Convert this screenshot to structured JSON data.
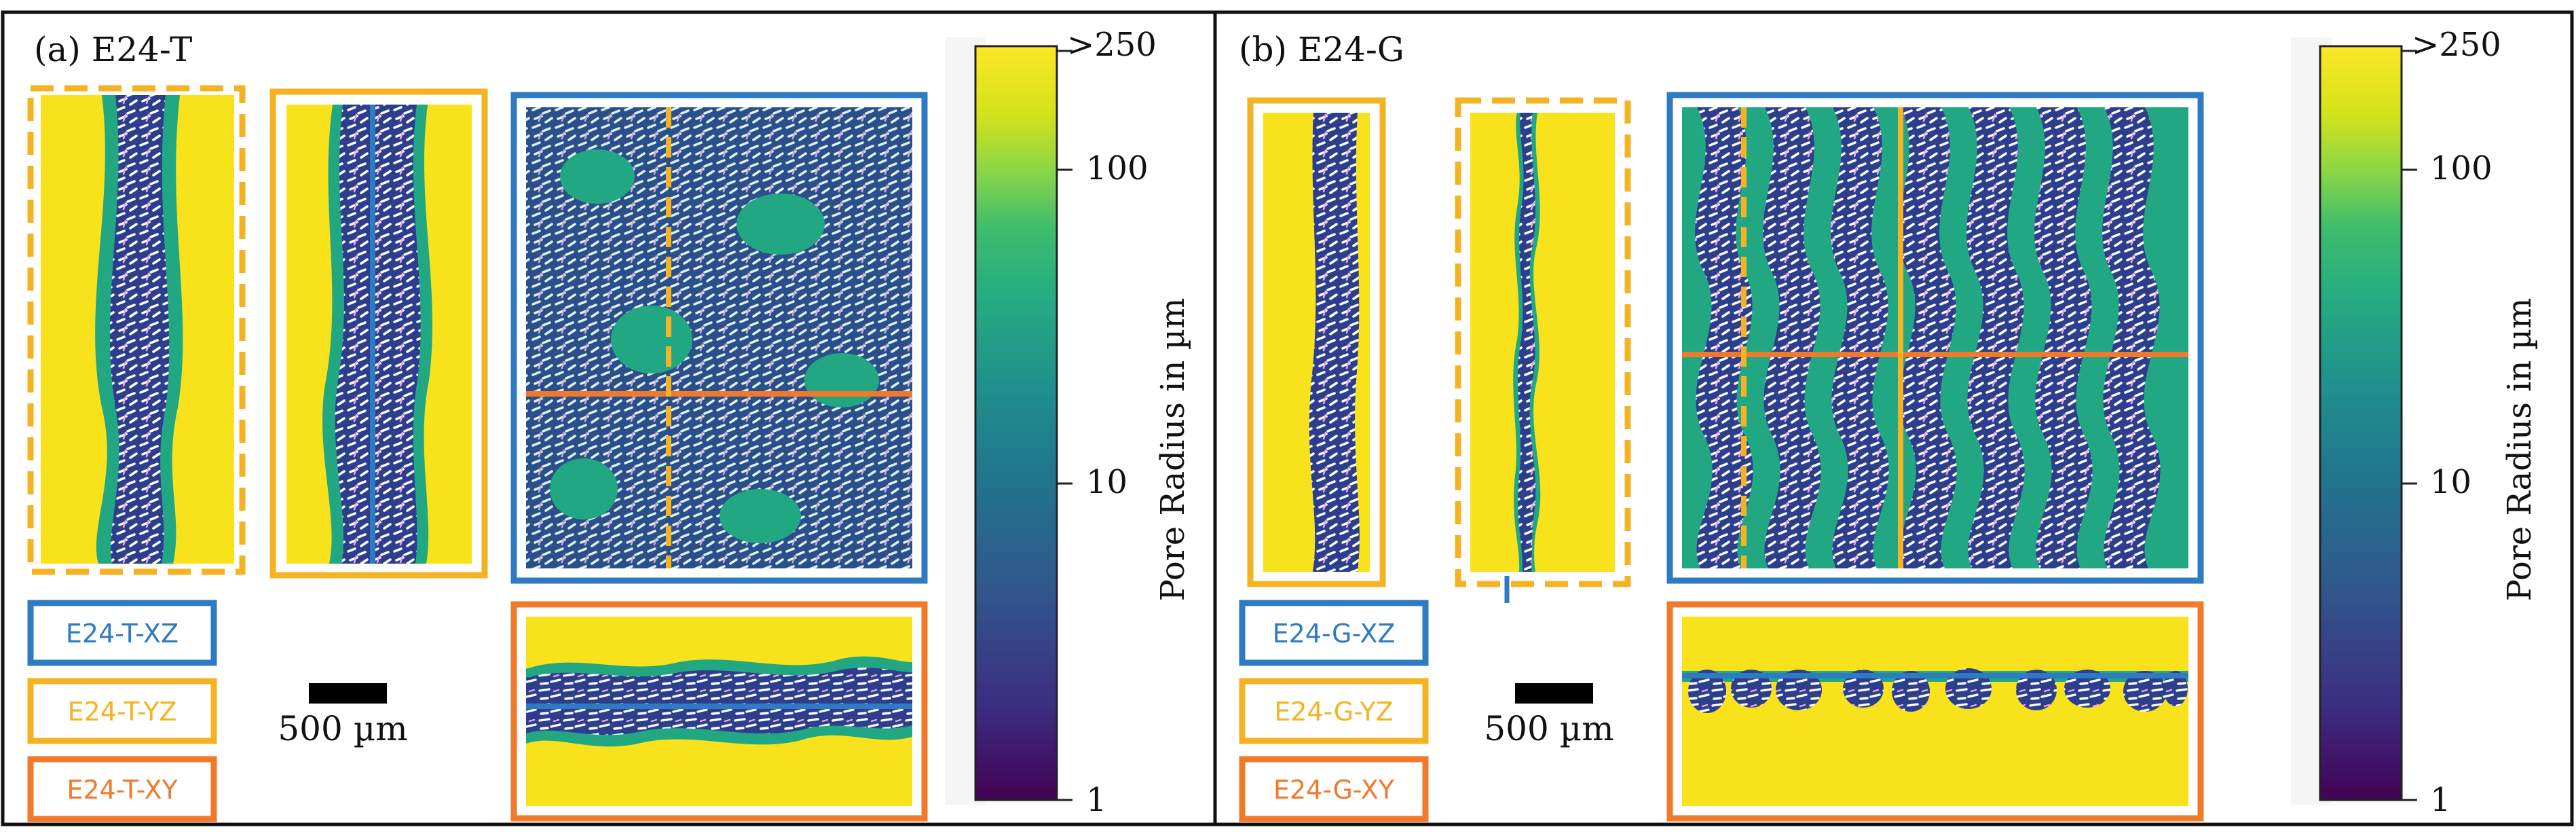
{
  "panels": [
    {
      "label": "(a) E24-T",
      "legend": [
        "E24-T-XZ",
        "E24-T-YZ",
        "E24-T-XY"
      ],
      "scalebar": "500 µm",
      "colorbar": {
        "ticks": [
          ">250",
          "100",
          "10",
          "1"
        ],
        "title": "Pore Radius in µm"
      }
    },
    {
      "label": "(b) E24-G",
      "legend": [
        "E24-G-XZ",
        "E24-G-YZ",
        "E24-G-XY"
      ],
      "scalebar": "500 µm",
      "colorbar": {
        "ticks": [
          ">250",
          "100",
          "10",
          "1"
        ],
        "title": "Pore Radius in µm"
      }
    }
  ],
  "colors": {
    "xz": "#2f7bc3",
    "yz": "#f5b323",
    "xy": "#f07a2a",
    "pore_large": "#f7e21b",
    "pore_mid": "#21a883",
    "pore_small": "#3b4d8f",
    "fiber": "#2a3a88"
  }
}
